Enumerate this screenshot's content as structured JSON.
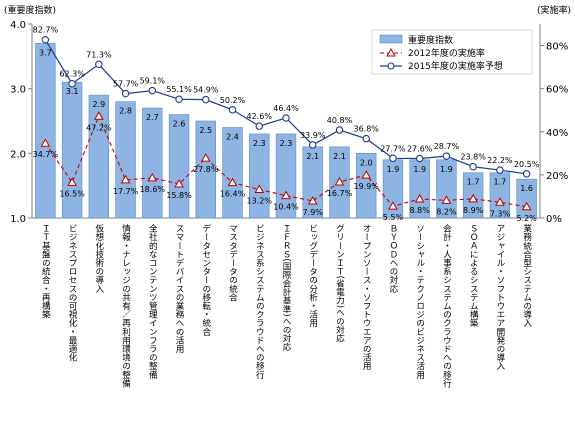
{
  "chart_data": {
    "type": "bar",
    "left_axis_title": "(重要度指数)",
    "right_axis_title": "(実施率)",
    "left_ylim": [
      1.0,
      4.0
    ],
    "left_ticks": [
      "1.0",
      "2.0",
      "3.0",
      "4.0"
    ],
    "right_ylim": [
      0,
      90
    ],
    "right_ticks": [
      "0%",
      "20%",
      "40%",
      "60%",
      "80%"
    ],
    "legend_position": "top-right",
    "grid": false,
    "colors": {
      "bar_fill": "#8db4e2",
      "bar_stroke": "#5d8cc8",
      "line_2012": "#c00000",
      "line_2015": "#1f3a93",
      "axis": "#808080",
      "text": "#000000"
    },
    "categories": [
      "ＩＴ基盤の統合・再構築",
      "ビジネスプロセスの可視化・最適化",
      "仮想化技術の導入",
      "情報・ナレッジの共有／再利用環境の整備",
      "全社的なコンテンツ管理インフラの整備",
      "スマートデバイスの業務への活用",
      "データセンターの移転・統合",
      "マスタデータの統合",
      "ビジネス系システムのクラウドへの移行",
      "ＩＦＲＳ(国際会計基準)への対応",
      "ビッグデータの分析・活用",
      "グリーンＩＴ(省電力)への対応",
      "オープンソース・ソフトウエアの活用",
      "ＢＹＯＤへの対応",
      "ソーシャル・テクノロジのビジネス活用",
      "会計・人事系システムのクラウドへの移行",
      "ＳＯＡによるシステム構築",
      "アジャイル・ソフトウエア開発の導入",
      "業務統合型システムの導入"
    ],
    "series": [
      {
        "name": "重要度指数",
        "kind": "bar",
        "axis": "left",
        "values": [
          3.7,
          3.1,
          2.9,
          2.8,
          2.7,
          2.6,
          2.5,
          2.4,
          2.3,
          2.3,
          2.1,
          2.1,
          2.0,
          1.9,
          1.9,
          1.9,
          1.7,
          1.7,
          1.6
        ],
        "labels": [
          "3.7",
          "3.1",
          "2.9",
          "2.8",
          "2.7",
          "2.6",
          "2.5",
          "2.4",
          "2.3",
          "2.3",
          "2.1",
          "2.1",
          "2.0",
          "1.9",
          "1.9",
          "1.9",
          "1.7",
          "1.7",
          "1.6"
        ]
      },
      {
        "name": "2012年度の実施率",
        "kind": "line",
        "axis": "right",
        "values": [
          34.7,
          16.5,
          47.2,
          17.7,
          18.6,
          15.8,
          27.8,
          16.4,
          13.2,
          10.4,
          7.9,
          16.7,
          19.9,
          5.5,
          8.8,
          8.2,
          8.9,
          7.3,
          5.2
        ],
        "labels": [
          "34.7%",
          "16.5%",
          "47.2%",
          "17.7%",
          "18.6%",
          "15.8%",
          "27.8%",
          "16.4%",
          "13.2%",
          "10.4%",
          "7.9%",
          "16.7%",
          "19.9%",
          "5.5%",
          "8.8%",
          "8.2%",
          "8.9%",
          "7.3%",
          "5.2%"
        ]
      },
      {
        "name": "2015年度の実施率予想",
        "kind": "line",
        "axis": "right",
        "values": [
          82.7,
          62.3,
          71.3,
          57.7,
          59.1,
          55.1,
          54.9,
          50.2,
          42.6,
          46.4,
          33.9,
          40.8,
          36.8,
          27.7,
          27.6,
          28.7,
          23.8,
          22.2,
          20.5
        ],
        "labels": [
          "82.7%",
          "62.3%",
          "71.3%",
          "57.7%",
          "59.1%",
          "55.1%",
          "54.9%",
          "50.2%",
          "42.6%",
          "46.4%",
          "33.9%",
          "40.8%",
          "36.8%",
          "27.7%",
          "27.6%",
          "28.7%",
          "23.8%",
          "22.2%",
          "20.5%"
        ]
      }
    ]
  }
}
